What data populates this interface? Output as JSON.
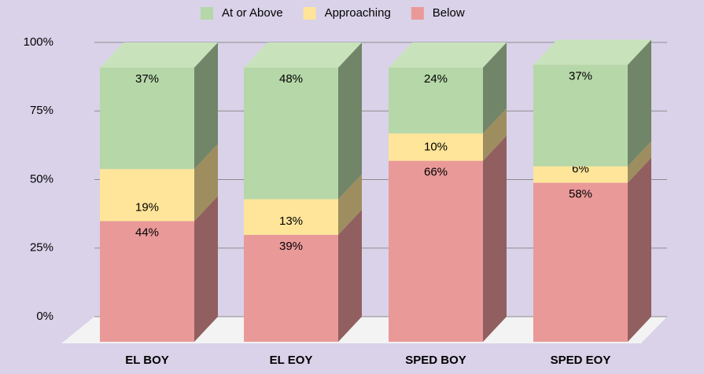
{
  "chart_data": {
    "type": "bar3d_stacked",
    "categories": [
      "EL BOY",
      "EL EOY",
      "SPED BOY",
      "SPED EOY"
    ],
    "series": [
      {
        "name": "Below",
        "color": "#ea9999",
        "values": [
          44,
          39,
          66,
          58
        ],
        "value_labels": [
          "44%",
          "39%",
          "66%",
          "58%"
        ]
      },
      {
        "name": "Approaching",
        "color": "#ffe599",
        "values": [
          19,
          13,
          10,
          6
        ],
        "value_labels": [
          "19%",
          "13%",
          "10%",
          "6%"
        ]
      },
      {
        "name": "At or Above",
        "color": "#b6d7a8",
        "values": [
          37,
          48,
          24,
          37
        ],
        "value_labels": [
          "37%",
          "48%",
          "24%",
          "37%"
        ]
      }
    ],
    "legend_order": [
      "At or Above",
      "Approaching",
      "Below"
    ],
    "ylim": [
      0,
      100
    ],
    "yticks": [
      {
        "value": 0,
        "label": "0%"
      },
      {
        "value": 25,
        "label": "25%"
      },
      {
        "value": 50,
        "label": "50%"
      },
      {
        "value": 75,
        "label": "75%"
      },
      {
        "value": 100,
        "label": "100%"
      }
    ],
    "grid": true,
    "legend": "top"
  }
}
